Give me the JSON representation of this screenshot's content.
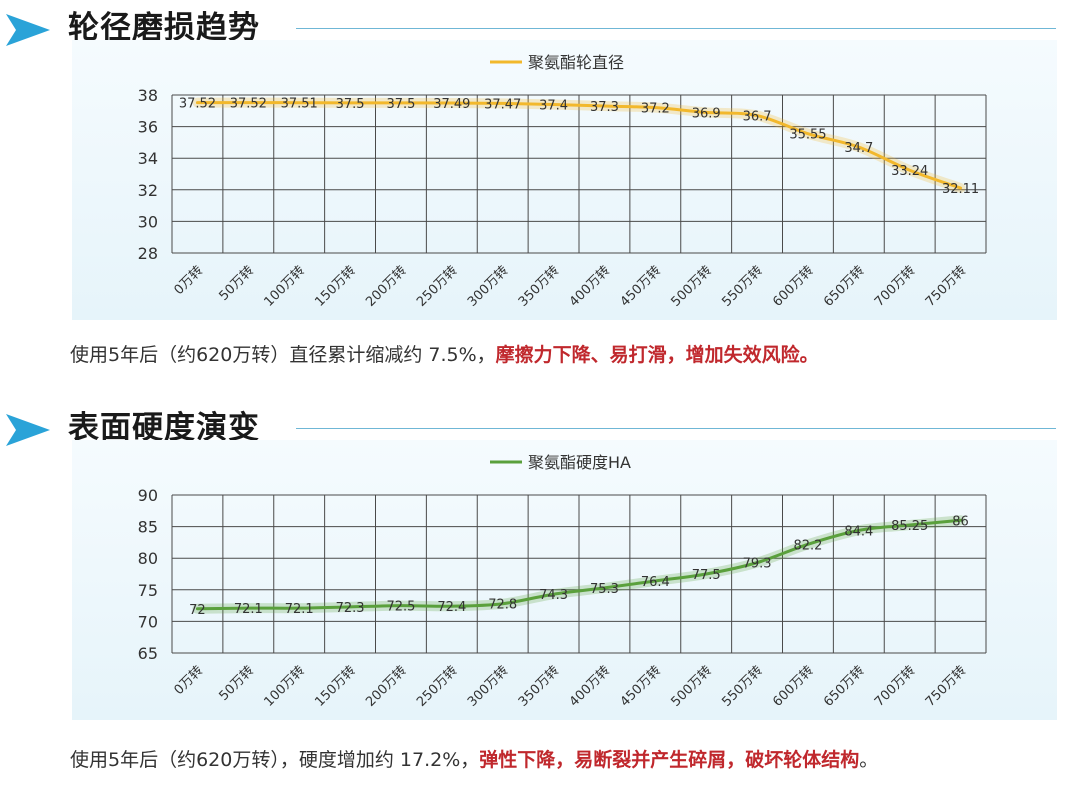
{
  "sections": [
    {
      "title": "轮径磨损趋势",
      "caption_normal": "使用5年后（约620万转）直径累计缩减约 7.5%，",
      "caption_warning": "摩擦力下降、易打滑，增加失效风险。",
      "caption_end": ""
    },
    {
      "title": "表面硬度演变",
      "caption_normal": "使用5年后（约620万转），硬度增加约 17.2%，",
      "caption_warning": "弹性下降，易断裂并产生碎屑，破坏轮体结构",
      "caption_end": "。"
    }
  ],
  "colors": {
    "accent": "#2aa3d8",
    "rule": "#6fb7d6",
    "warning": "#c0282d",
    "series1": "#f2b82c",
    "series2": "#5aa03c"
  },
  "chart_data": [
    {
      "type": "line",
      "legend": "聚氨酯轮直径",
      "categories": [
        "0万转",
        "50万转",
        "100万转",
        "150万转",
        "200万转",
        "250万转",
        "300万转",
        "350万转",
        "400万转",
        "450万转",
        "500万转",
        "550万转",
        "600万转",
        "650万转",
        "700万转",
        "750万转"
      ],
      "values": [
        37.52,
        37.52,
        37.51,
        37.5,
        37.5,
        37.49,
        37.47,
        37.4,
        37.3,
        37.2,
        36.9,
        36.7,
        35.55,
        34.7,
        33.24,
        32.11
      ],
      "ylim": [
        28,
        38
      ],
      "yticks": [
        28,
        30,
        32,
        34,
        36,
        38
      ],
      "grid": true,
      "legend_position": "top-center"
    },
    {
      "type": "line",
      "legend": "聚氨酯硬度HA",
      "categories": [
        "0万转",
        "50万转",
        "100万转",
        "150万转",
        "200万转",
        "250万转",
        "300万转",
        "350万转",
        "400万转",
        "450万转",
        "500万转",
        "550万转",
        "600万转",
        "650万转",
        "700万转",
        "750万转"
      ],
      "values": [
        72,
        72.1,
        72.1,
        72.3,
        72.5,
        72.4,
        72.8,
        74.3,
        75.3,
        76.4,
        77.5,
        79.3,
        82.2,
        84.4,
        85.25,
        86
      ],
      "ylim": [
        65,
        90
      ],
      "yticks": [
        65,
        70,
        75,
        80,
        85,
        90
      ],
      "grid": true,
      "legend_position": "top-center"
    }
  ]
}
